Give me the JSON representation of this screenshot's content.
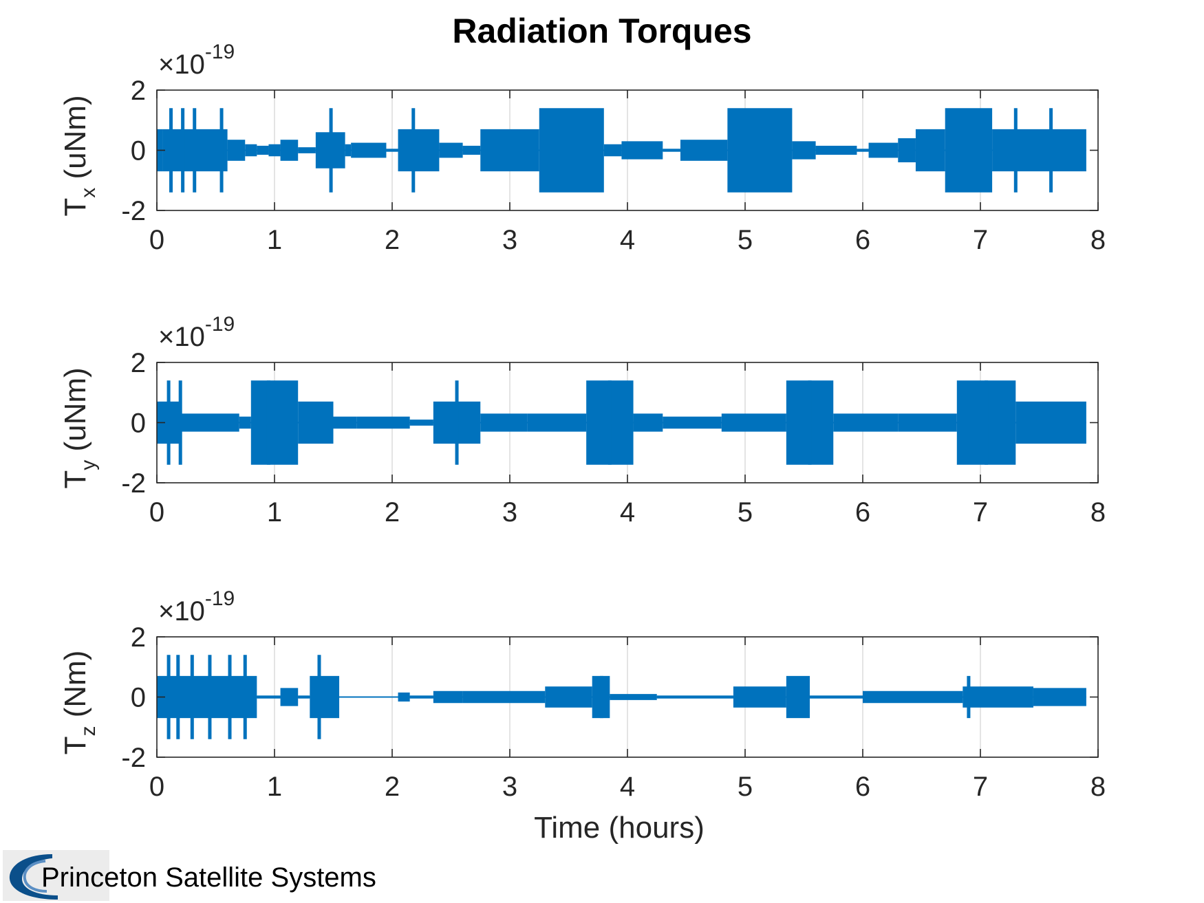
{
  "title": "Radiation Torques",
  "xlabel": "Time (hours)",
  "logo": {
    "text": "Princeton Satellite Systems",
    "color": "#0b4f8a"
  },
  "colors": {
    "series": "#0072bd",
    "axes": "#262626",
    "grid": "#dcdcdc"
  },
  "chart_data": [
    {
      "type": "area",
      "ylabel_main": "T",
      "ylabel_sub": "x",
      "ylabel_unit": " (uNm)",
      "exponent": {
        "base": "×10",
        "power": "-19"
      },
      "xlim": [
        0,
        8
      ],
      "ylim": [
        -2,
        2
      ],
      "xticks": [
        "0",
        "1",
        "2",
        "3",
        "4",
        "5",
        "6",
        "7",
        "8"
      ],
      "yticks": [
        "2",
        "0",
        "-2"
      ],
      "grid": "x-only",
      "series": [
        {
          "segments": [
            [
              0.0,
              0.05,
              0.7
            ],
            [
              0.05,
              0.6,
              0.7
            ],
            [
              0.6,
              0.75,
              0.35
            ],
            [
              0.75,
              0.85,
              0.2
            ],
            [
              0.85,
              0.95,
              0.15
            ],
            [
              0.95,
              1.05,
              0.2
            ],
            [
              1.05,
              1.2,
              0.35
            ],
            [
              1.2,
              1.35,
              0.1
            ],
            [
              1.35,
              1.6,
              0.6
            ],
            [
              1.6,
              1.65,
              0.2
            ],
            [
              1.65,
              1.95,
              0.25
            ],
            [
              1.95,
              2.05,
              0.05
            ],
            [
              2.05,
              2.4,
              0.7
            ],
            [
              2.4,
              2.6,
              0.25
            ],
            [
              2.6,
              2.75,
              0.15
            ],
            [
              2.75,
              3.25,
              0.7
            ],
            [
              3.25,
              3.8,
              1.4
            ],
            [
              3.8,
              3.95,
              0.2
            ],
            [
              3.95,
              4.3,
              0.3
            ],
            [
              4.3,
              4.45,
              0.05
            ],
            [
              4.45,
              4.85,
              0.35
            ],
            [
              4.85,
              5.4,
              1.4
            ],
            [
              5.4,
              5.6,
              0.3
            ],
            [
              5.6,
              5.95,
              0.15
            ],
            [
              5.95,
              6.05,
              0.05
            ],
            [
              6.05,
              6.3,
              0.25
            ],
            [
              6.3,
              6.45,
              0.4
            ],
            [
              6.45,
              6.7,
              0.7
            ],
            [
              6.7,
              7.1,
              1.4
            ],
            [
              7.1,
              7.9,
              0.7
            ]
          ],
          "spikes": [
            [
              0.12,
              1.4
            ],
            [
              0.22,
              1.4
            ],
            [
              0.32,
              1.4
            ],
            [
              0.55,
              1.4
            ],
            [
              1.48,
              1.4
            ],
            [
              2.18,
              1.4
            ],
            [
              7.3,
              1.4
            ],
            [
              7.6,
              1.4
            ]
          ]
        }
      ]
    },
    {
      "type": "area",
      "ylabel_main": "T",
      "ylabel_sub": "y",
      "ylabel_unit": " (uNm)",
      "exponent": {
        "base": "×10",
        "power": "-19"
      },
      "xlim": [
        0,
        8
      ],
      "ylim": [
        -2,
        2
      ],
      "xticks": [
        "0",
        "1",
        "2",
        "3",
        "4",
        "5",
        "6",
        "7",
        "8"
      ],
      "yticks": [
        "2",
        "0",
        "-2"
      ],
      "grid": "x-only",
      "series": [
        {
          "segments": [
            [
              0.0,
              0.2,
              0.7
            ],
            [
              0.2,
              0.7,
              0.3
            ],
            [
              0.7,
              0.8,
              0.2
            ],
            [
              0.8,
              1.2,
              1.4
            ],
            [
              1.2,
              1.5,
              0.7
            ],
            [
              1.5,
              1.7,
              0.2
            ],
            [
              1.7,
              2.15,
              0.2
            ],
            [
              2.15,
              2.35,
              0.1
            ],
            [
              2.35,
              2.75,
              0.7
            ],
            [
              2.75,
              3.15,
              0.3
            ],
            [
              3.15,
              3.65,
              0.3
            ],
            [
              3.65,
              4.05,
              1.4
            ],
            [
              4.05,
              4.3,
              0.3
            ],
            [
              4.3,
              4.8,
              0.2
            ],
            [
              4.8,
              5.35,
              0.3
            ],
            [
              5.35,
              5.75,
              1.4
            ],
            [
              5.75,
              6.3,
              0.3
            ],
            [
              6.3,
              6.8,
              0.3
            ],
            [
              6.8,
              7.3,
              1.4
            ],
            [
              7.3,
              7.9,
              0.7
            ]
          ],
          "spikes": [
            [
              0.1,
              1.4
            ],
            [
              0.2,
              1.4
            ],
            [
              0.95,
              1.4
            ],
            [
              2.55,
              1.4
            ],
            [
              3.85,
              1.4
            ],
            [
              5.55,
              1.4
            ],
            [
              7.05,
              1.4
            ]
          ]
        }
      ]
    },
    {
      "type": "area",
      "ylabel_main": "T",
      "ylabel_sub": "z",
      "ylabel_unit": " (Nm)",
      "exponent": {
        "base": "×10",
        "power": "-19"
      },
      "xlim": [
        0,
        8
      ],
      "ylim": [
        -2,
        2
      ],
      "xticks": [
        "0",
        "1",
        "2",
        "3",
        "4",
        "5",
        "6",
        "7",
        "8"
      ],
      "yticks": [
        "2",
        "0",
        "-2"
      ],
      "grid": "x-only",
      "series": [
        {
          "segments": [
            [
              0.0,
              0.85,
              0.7
            ],
            [
              0.85,
              1.05,
              0.05
            ],
            [
              1.05,
              1.2,
              0.3
            ],
            [
              1.2,
              1.3,
              0.05
            ],
            [
              1.3,
              1.55,
              0.7
            ],
            [
              1.55,
              2.05,
              0.02
            ],
            [
              2.05,
              2.15,
              0.15
            ],
            [
              2.15,
              2.35,
              0.05
            ],
            [
              2.35,
              2.6,
              0.2
            ],
            [
              2.6,
              3.3,
              0.2
            ],
            [
              3.3,
              3.7,
              0.35
            ],
            [
              3.7,
              3.85,
              0.7
            ],
            [
              3.85,
              4.25,
              0.1
            ],
            [
              4.25,
              4.9,
              0.05
            ],
            [
              4.9,
              5.35,
              0.35
            ],
            [
              5.35,
              5.55,
              0.7
            ],
            [
              5.55,
              6.0,
              0.05
            ],
            [
              6.0,
              6.85,
              0.2
            ],
            [
              6.85,
              7.45,
              0.35
            ],
            [
              7.45,
              7.9,
              0.3
            ]
          ],
          "spikes": [
            [
              0.1,
              1.4
            ],
            [
              0.18,
              1.4
            ],
            [
              0.3,
              1.4
            ],
            [
              0.45,
              1.4
            ],
            [
              0.62,
              1.4
            ],
            [
              0.75,
              1.4
            ],
            [
              1.38,
              1.4
            ],
            [
              3.78,
              0.7
            ],
            [
              6.9,
              0.7
            ]
          ]
        }
      ]
    }
  ]
}
